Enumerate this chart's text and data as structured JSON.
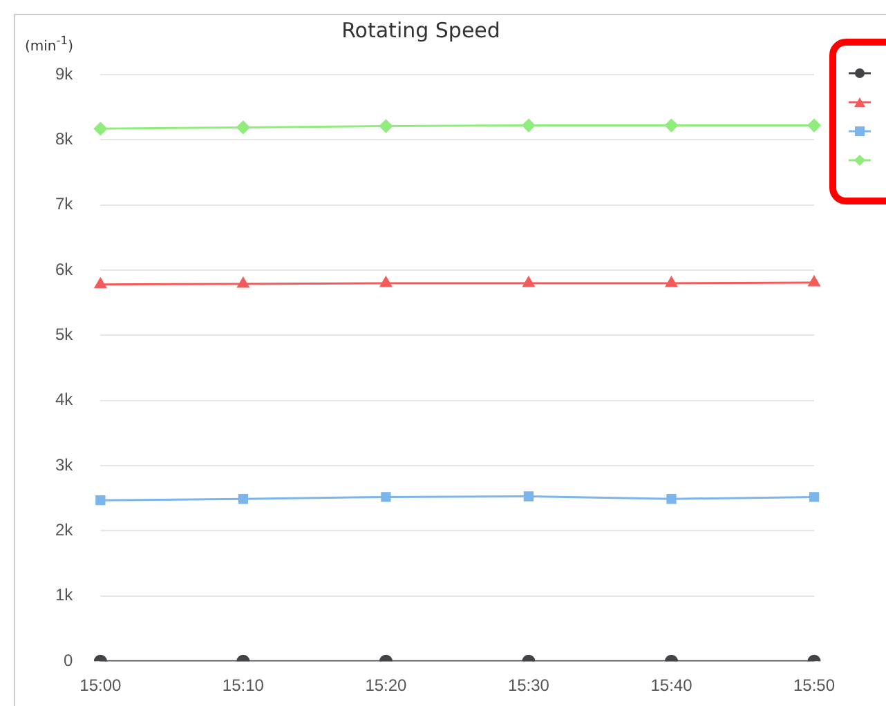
{
  "chart_data": {
    "type": "line",
    "title": "Rotating Speed",
    "ylabel": "(min$^{-1}$)",
    "categories": [
      "15:00",
      "15:10",
      "15:20",
      "15:30",
      "15:40",
      "15:50"
    ],
    "series": [
      {
        "color": "#434348",
        "marker": "circle",
        "values": [
          0,
          0,
          0,
          0,
          0,
          0
        ]
      },
      {
        "color": "#f45b5b",
        "marker": "triangle",
        "values": [
          5780,
          5790,
          5800,
          5800,
          5800,
          5810
        ]
      },
      {
        "color": "#7cb5ec",
        "marker": "square",
        "values": [
          2470,
          2490,
          2520,
          2530,
          2490,
          2520
        ]
      },
      {
        "color": "#90ed7d",
        "marker": "diamond",
        "values": [
          8170,
          8190,
          8210,
          8220,
          8220,
          8220
        ]
      }
    ],
    "ylim": [
      0,
      9000
    ],
    "yticks": [
      {
        "value": 0,
        "label": "0"
      },
      {
        "value": 1000,
        "label": "1k"
      },
      {
        "value": 2000,
        "label": "2k"
      },
      {
        "value": 3000,
        "label": "3k"
      },
      {
        "value": 4000,
        "label": "4k"
      },
      {
        "value": 5000,
        "label": "5k"
      },
      {
        "value": 6000,
        "label": "6k"
      },
      {
        "value": 7000,
        "label": "7k"
      },
      {
        "value": 8000,
        "label": "8k"
      },
      {
        "value": 9000,
        "label": "9k"
      }
    ],
    "grid": "y"
  }
}
